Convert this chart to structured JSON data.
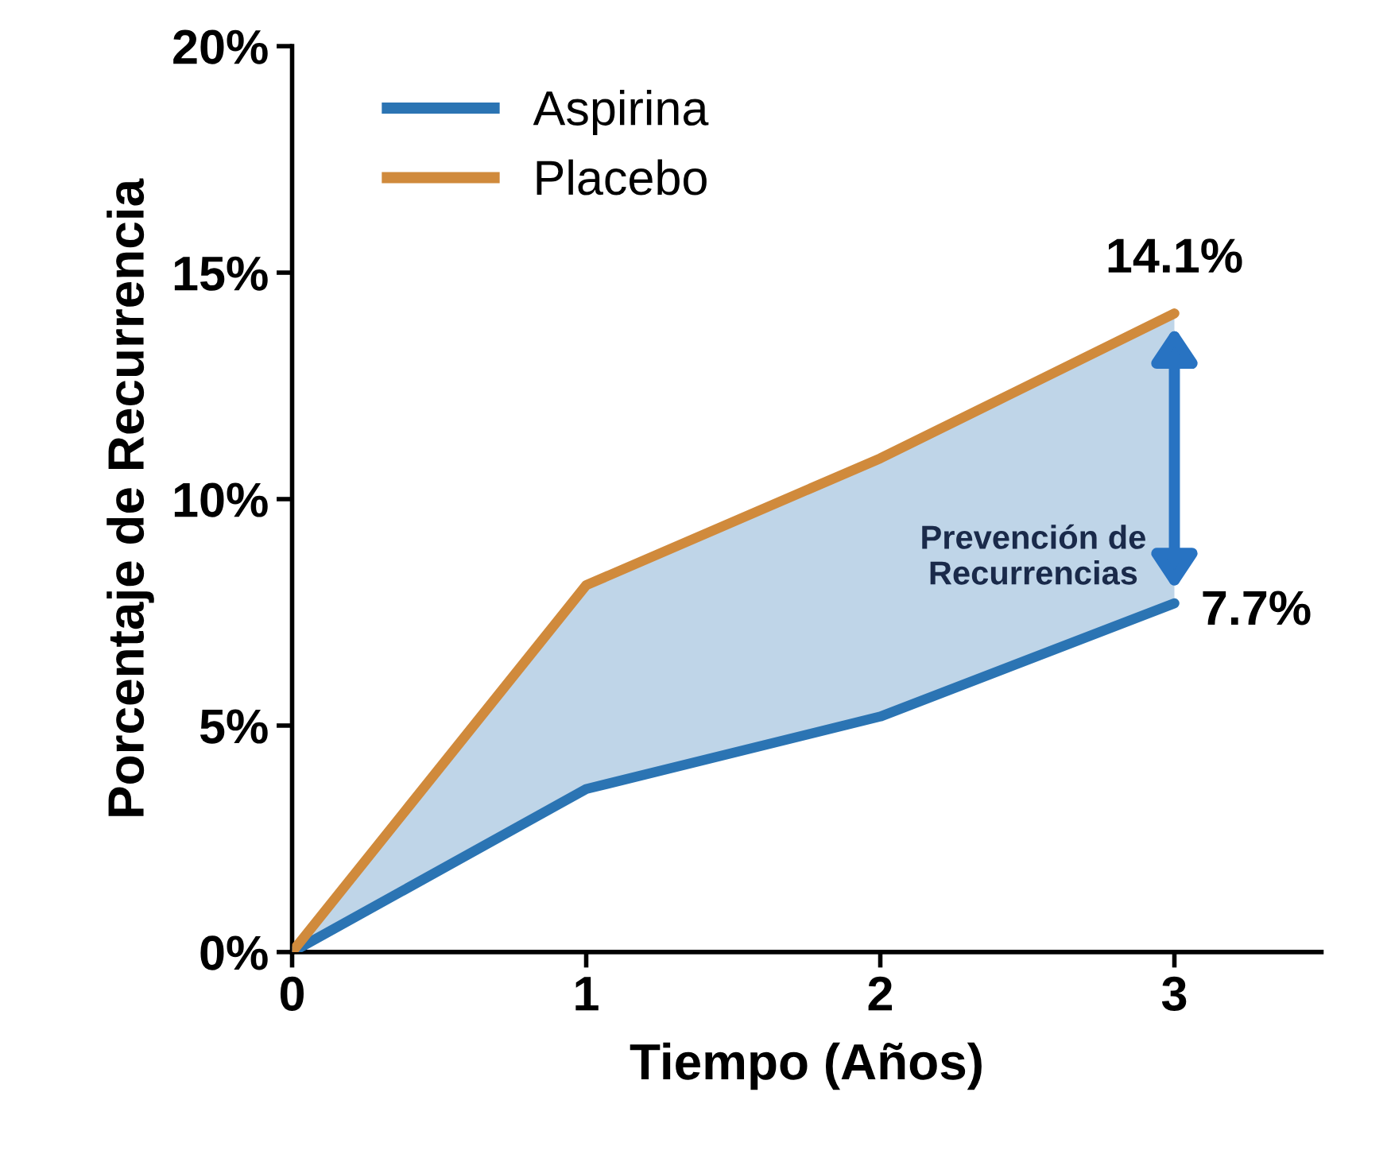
{
  "chart_data": {
    "type": "line",
    "xlabel": "Tiempo (Años)",
    "ylabel": "Porcentaje de Recurrencia",
    "x": [
      0,
      1,
      2,
      3
    ],
    "series": [
      {
        "name": "Aspirina",
        "color": "#2b74b3",
        "values": [
          0,
          3.6,
          5.2,
          7.7
        ],
        "lower": [
          0,
          3.6,
          5.2,
          7.7
        ],
        "upper": [
          0,
          8.1,
          10.9,
          14.1
        ]
      },
      {
        "name": "Placebo",
        "color": "#d08a3c",
        "values": [
          0,
          8.1,
          10.9,
          14.1
        ]
      }
    ],
    "xlim": [
      0,
      3.5
    ],
    "xticks": [
      0,
      1,
      2,
      3
    ],
    "ylim": [
      0,
      20
    ],
    "yticks": [
      {
        "value": 0,
        "label": "0%"
      },
      {
        "value": 5,
        "label": "5%"
      },
      {
        "value": 10,
        "label": "10%"
      },
      {
        "value": 15,
        "label": "15%"
      },
      {
        "value": 20,
        "label": "20%"
      }
    ],
    "annotations": [
      {
        "text": "14.1%",
        "x": 3,
        "y": 14.1
      },
      {
        "text": "7.7%",
        "x": 3,
        "y": 7.7
      },
      "Prevención de\nRecurrencias"
    ],
    "grid": false,
    "legend": "top left",
    "marker": "none",
    "line_style": "solid"
  }
}
